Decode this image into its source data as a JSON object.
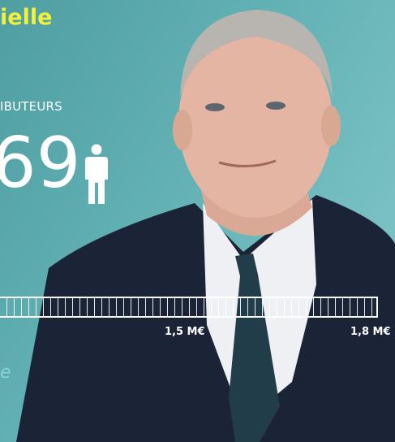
{
  "heading": "ielle",
  "counter": {
    "label": "IBUTEURS",
    "value": "69"
  },
  "progress": {
    "labels": [
      "1,5 M€",
      "1,8 M€"
    ]
  },
  "footer": "e"
}
